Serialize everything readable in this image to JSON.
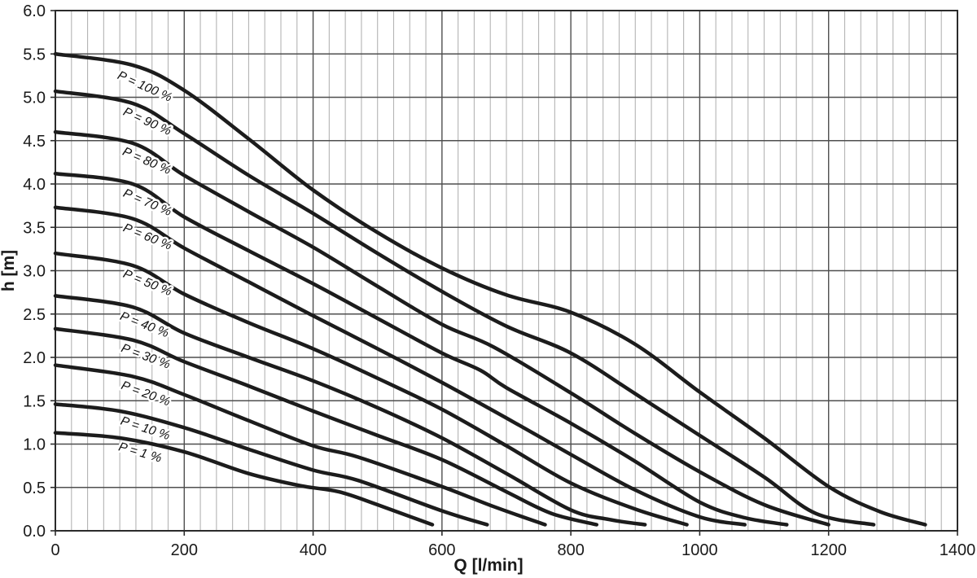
{
  "chart_data": {
    "type": "line",
    "title": "",
    "xlabel": "Q [l/min]",
    "ylabel": "h [m]",
    "xlim": [
      0,
      1400
    ],
    "ylim": [
      0.0,
      6.0
    ],
    "x_major_step": 200,
    "x_minor_step": 25,
    "y_major_step": 0.5,
    "grid": "on",
    "legend_position": "labels-on-curves",
    "x_ticks": [
      "0",
      "200",
      "400",
      "600",
      "800",
      "1000",
      "1200",
      "1400"
    ],
    "y_ticks": [
      "0.0",
      "0.5",
      "1.0",
      "1.5",
      "2.0",
      "2.5",
      "3.0",
      "3.5",
      "4.0",
      "4.5",
      "5.0",
      "5.5",
      "6.0"
    ],
    "series": [
      {
        "name": "P = 100 %",
        "label": {
          "q": 95,
          "h": 5.22,
          "angle": 24
        },
        "points": [
          [
            0,
            5.5
          ],
          [
            120,
            5.37
          ],
          [
            200,
            5.08
          ],
          [
            300,
            4.52
          ],
          [
            400,
            3.93
          ],
          [
            500,
            3.44
          ],
          [
            600,
            3.03
          ],
          [
            700,
            2.72
          ],
          [
            800,
            2.52
          ],
          [
            900,
            2.15
          ],
          [
            1000,
            1.6
          ],
          [
            1100,
            1.07
          ],
          [
            1200,
            0.51
          ],
          [
            1280,
            0.22
          ],
          [
            1350,
            0.07
          ]
        ]
      },
      {
        "name": "P = 90 %",
        "label": {
          "q": 104,
          "h": 4.8,
          "angle": 24
        },
        "points": [
          [
            0,
            5.07
          ],
          [
            120,
            4.93
          ],
          [
            200,
            4.58
          ],
          [
            300,
            4.1
          ],
          [
            400,
            3.66
          ],
          [
            500,
            3.2
          ],
          [
            600,
            2.76
          ],
          [
            700,
            2.36
          ],
          [
            800,
            2.05
          ],
          [
            900,
            1.58
          ],
          [
            1000,
            1.1
          ],
          [
            1100,
            0.62
          ],
          [
            1180,
            0.2
          ],
          [
            1270,
            0.07
          ]
        ]
      },
      {
        "name": "P = 80 %",
        "label": {
          "q": 103,
          "h": 4.34,
          "angle": 23
        },
        "points": [
          [
            0,
            4.6
          ],
          [
            120,
            4.47
          ],
          [
            200,
            4.1
          ],
          [
            300,
            3.68
          ],
          [
            400,
            3.27
          ],
          [
            500,
            2.82
          ],
          [
            600,
            2.38
          ],
          [
            680,
            2.12
          ],
          [
            800,
            1.59
          ],
          [
            900,
            1.12
          ],
          [
            1000,
            0.68
          ],
          [
            1100,
            0.3
          ],
          [
            1200,
            0.07
          ]
        ]
      },
      {
        "name": "P = 70 %",
        "label": {
          "q": 104,
          "h": 3.86,
          "angle": 23
        },
        "points": [
          [
            0,
            4.12
          ],
          [
            120,
            4.0
          ],
          [
            200,
            3.62
          ],
          [
            300,
            3.23
          ],
          [
            400,
            2.85
          ],
          [
            500,
            2.45
          ],
          [
            600,
            2.05
          ],
          [
            660,
            1.85
          ],
          [
            700,
            1.65
          ],
          [
            800,
            1.24
          ],
          [
            900,
            0.8
          ],
          [
            1000,
            0.33
          ],
          [
            1070,
            0.15
          ],
          [
            1135,
            0.07
          ]
        ]
      },
      {
        "name": "P = 60 %",
        "label": {
          "q": 104,
          "h": 3.46,
          "angle": 22
        },
        "points": [
          [
            0,
            3.73
          ],
          [
            120,
            3.6
          ],
          [
            200,
            3.26
          ],
          [
            300,
            2.87
          ],
          [
            400,
            2.48
          ],
          [
            500,
            2.1
          ],
          [
            600,
            1.71
          ],
          [
            700,
            1.3
          ],
          [
            800,
            0.88
          ],
          [
            900,
            0.47
          ],
          [
            1000,
            0.16
          ],
          [
            1070,
            0.07
          ]
        ]
      },
      {
        "name": "P = 50 %",
        "label": {
          "q": 104,
          "h": 2.93,
          "angle": 22
        },
        "points": [
          [
            0,
            3.2
          ],
          [
            120,
            3.06
          ],
          [
            200,
            2.73
          ],
          [
            300,
            2.4
          ],
          [
            400,
            2.1
          ],
          [
            500,
            1.76
          ],
          [
            600,
            1.4
          ],
          [
            700,
            0.98
          ],
          [
            800,
            0.55
          ],
          [
            900,
            0.25
          ],
          [
            980,
            0.07
          ]
        ]
      },
      {
        "name": "P = 40 %",
        "label": {
          "q": 99,
          "h": 2.44,
          "angle": 21
        },
        "points": [
          [
            0,
            2.71
          ],
          [
            120,
            2.58
          ],
          [
            200,
            2.28
          ],
          [
            300,
            2.0
          ],
          [
            400,
            1.73
          ],
          [
            500,
            1.42
          ],
          [
            600,
            1.07
          ],
          [
            700,
            0.66
          ],
          [
            800,
            0.24
          ],
          [
            860,
            0.13
          ],
          [
            915,
            0.07
          ]
        ]
      },
      {
        "name": "P = 30 %",
        "label": {
          "q": 101,
          "h": 2.07,
          "angle": 20
        },
        "points": [
          [
            0,
            2.33
          ],
          [
            120,
            2.2
          ],
          [
            200,
            1.95
          ],
          [
            300,
            1.67
          ],
          [
            400,
            1.38
          ],
          [
            500,
            1.1
          ],
          [
            600,
            0.82
          ],
          [
            700,
            0.45
          ],
          [
            770,
            0.2
          ],
          [
            840,
            0.07
          ]
        ]
      },
      {
        "name": "P = 20 %",
        "label": {
          "q": 101,
          "h": 1.64,
          "angle": 20
        },
        "points": [
          [
            0,
            1.91
          ],
          [
            120,
            1.78
          ],
          [
            200,
            1.57
          ],
          [
            300,
            1.27
          ],
          [
            400,
            0.98
          ],
          [
            470,
            0.85
          ],
          [
            600,
            0.51
          ],
          [
            680,
            0.28
          ],
          [
            760,
            0.07
          ]
        ]
      },
      {
        "name": "P = 10 %",
        "label": {
          "q": 100,
          "h": 1.23,
          "angle": 18
        },
        "points": [
          [
            0,
            1.46
          ],
          [
            100,
            1.38
          ],
          [
            200,
            1.19
          ],
          [
            300,
            0.94
          ],
          [
            400,
            0.7
          ],
          [
            470,
            0.58
          ],
          [
            600,
            0.23
          ],
          [
            670,
            0.07
          ]
        ]
      },
      {
        "name": "P = 1 %",
        "label": {
          "q": 97,
          "h": 0.93,
          "angle": 16
        },
        "points": [
          [
            0,
            1.13
          ],
          [
            100,
            1.07
          ],
          [
            200,
            0.91
          ],
          [
            300,
            0.66
          ],
          [
            380,
            0.52
          ],
          [
            440,
            0.45
          ],
          [
            500,
            0.3
          ],
          [
            585,
            0.07
          ]
        ]
      }
    ],
    "colors": {
      "curve": "#1c1c1c",
      "grid_major": "#4f4f4f",
      "grid_minor": "#b4b4b4",
      "border": "#2b2b2b",
      "text": "#1a1a1a",
      "background": "#ffffff"
    }
  }
}
